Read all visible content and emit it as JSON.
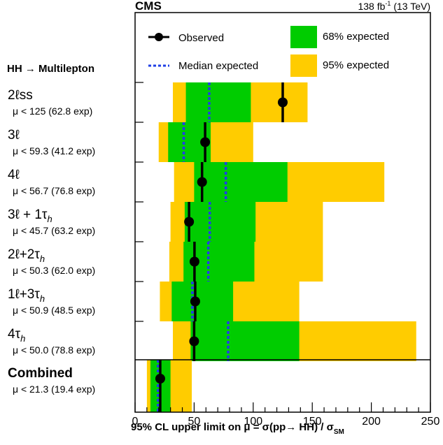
{
  "chart_data": {
    "type": "limit-plot",
    "experiment_label": "CMS",
    "luminosity_label": "138 fb",
    "luminosity_exponent": "-1",
    "energy_label": "(13 TeV)",
    "group_title": "HH → Multilepton",
    "xlabel": "95% CL upper limit on μ = σ(pp→ HH) / σ",
    "xlabel_subscript": "SM",
    "xlim": [
      0,
      250
    ],
    "xticks": [
      0,
      50,
      100,
      150,
      200,
      250
    ],
    "legend": {
      "observed": "Observed",
      "median": "Median expected",
      "band68": "68% expected",
      "band95": "95% expected"
    },
    "colors": {
      "band68": "#00cc00",
      "band95": "#ffcc00",
      "median": "#1f3fe6",
      "observed": "#000000"
    },
    "categories": [
      {
        "name_main": "2ℓss",
        "name_sub": "",
        "limit_text": "μ < 125 (62.8 exp)",
        "observed": 125,
        "expected": 62.8,
        "band68": [
          43,
          98
        ],
        "band95": [
          32,
          146
        ]
      },
      {
        "name_main": "3ℓ",
        "name_sub": "",
        "limit_text": "μ < 59.3 (41.2 exp)",
        "observed": 59.3,
        "expected": 41.2,
        "band68": [
          28,
          64
        ],
        "band95": [
          20,
          100
        ]
      },
      {
        "name_main": "4ℓ",
        "name_sub": "",
        "limit_text": "μ < 56.7 (76.8 exp)",
        "observed": 56.7,
        "expected": 76.8,
        "band68": [
          50,
          129
        ],
        "band95": [
          33,
          211
        ]
      },
      {
        "name_main": "3ℓ + 1τ",
        "name_sub": "h",
        "limit_text": "μ < 45.7 (63.2 exp)",
        "observed": 45.7,
        "expected": 63.2,
        "band68": [
          42,
          102
        ],
        "band95": [
          30,
          159
        ]
      },
      {
        "name_main": "2ℓ+2τ",
        "name_sub": "h",
        "limit_text": "μ < 50.3 (62.0 exp)",
        "observed": 50.3,
        "expected": 62.0,
        "band68": [
          41,
          101
        ],
        "band95": [
          29,
          159
        ]
      },
      {
        "name_main": "1ℓ+3τ",
        "name_sub": "h",
        "limit_text": "μ < 50.9 (48.5 exp)",
        "observed": 50.9,
        "expected": 48.5,
        "band68": [
          31,
          83
        ],
        "band95": [
          21,
          139
        ]
      },
      {
        "name_main": "4τ",
        "name_sub": "h",
        "limit_text": "μ < 50.0 (78.8 exp)",
        "observed": 50.0,
        "expected": 78.8,
        "band68": [
          47,
          139
        ],
        "band95": [
          32,
          238
        ]
      }
    ],
    "combined": {
      "name_main": "Combined",
      "limit_text": "μ < 21.3 (19.4 exp)",
      "observed": 21.3,
      "expected": 19.4,
      "band68": [
        13,
        30
      ],
      "band95": [
        10,
        48
      ]
    }
  }
}
